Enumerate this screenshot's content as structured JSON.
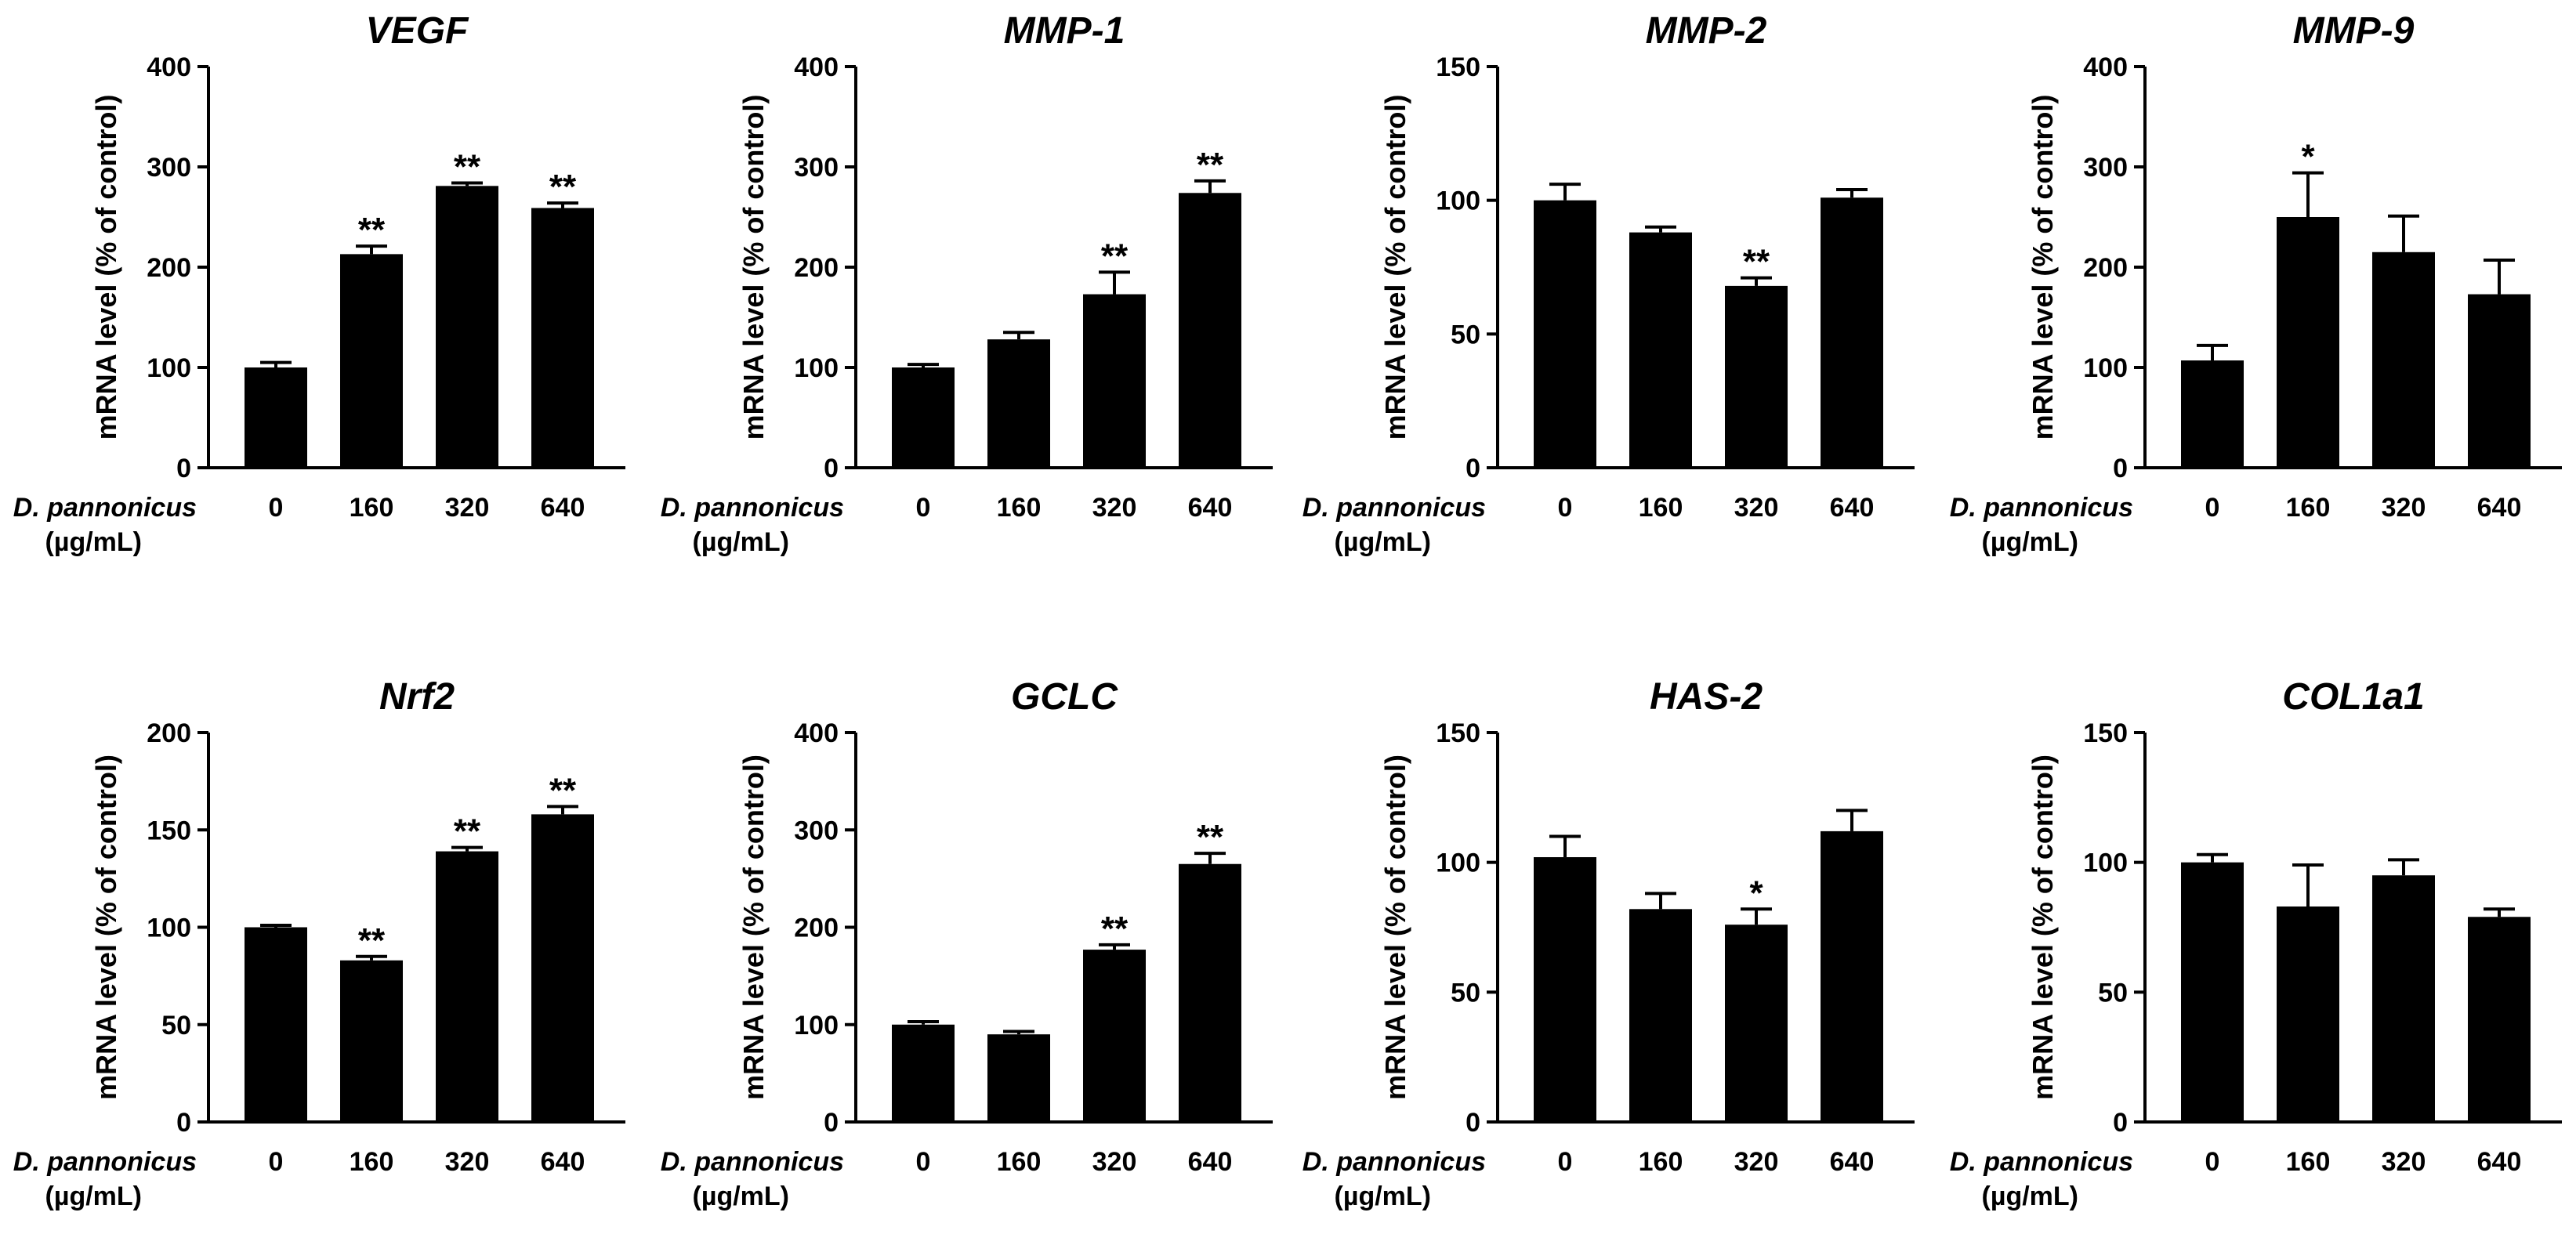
{
  "chart_data": [
    {
      "type": "bar",
      "title": "VEGF",
      "ylabel": "mRNA level (% of control)",
      "xlabel_line1": "D. pannonicus",
      "xlabel_line2": "(µg/mL)",
      "categories": [
        "0",
        "160",
        "320",
        "640"
      ],
      "values": [
        100,
        213,
        281,
        259
      ],
      "errors": [
        5,
        8,
        3,
        5
      ],
      "significance": [
        "",
        "**",
        "**",
        "**"
      ],
      "ylim": [
        0,
        400
      ],
      "yticks": [
        "0",
        "100",
        "200",
        "300",
        "400"
      ]
    },
    {
      "type": "bar",
      "title": "MMP-1",
      "ylabel": "mRNA level (% of control)",
      "xlabel_line1": "D. pannonicus",
      "xlabel_line2": "(µg/mL)",
      "categories": [
        "0",
        "160",
        "320",
        "640"
      ],
      "values": [
        100,
        128,
        173,
        274
      ],
      "errors": [
        3,
        7,
        22,
        12
      ],
      "significance": [
        "",
        "",
        "**",
        "**"
      ],
      "ylim": [
        0,
        400
      ],
      "yticks": [
        "0",
        "100",
        "200",
        "300",
        "400"
      ]
    },
    {
      "type": "bar",
      "title": "MMP-2",
      "ylabel": "mRNA level (% of control)",
      "xlabel_line1": "D. pannonicus",
      "xlabel_line2": "(µg/mL)",
      "categories": [
        "0",
        "160",
        "320",
        "640"
      ],
      "values": [
        100,
        88,
        68,
        101
      ],
      "errors": [
        6,
        2,
        3,
        3
      ],
      "significance": [
        "",
        "",
        "**",
        ""
      ],
      "ylim": [
        0,
        150
      ],
      "yticks": [
        "0",
        "50",
        "100",
        "150"
      ]
    },
    {
      "type": "bar",
      "title": "MMP-9",
      "ylabel": "mRNA level (% of control)",
      "xlabel_line1": "D. pannonicus",
      "xlabel_line2": "(µg/mL)",
      "categories": [
        "0",
        "160",
        "320",
        "640"
      ],
      "values": [
        107,
        250,
        215,
        173
      ],
      "errors": [
        15,
        44,
        36,
        34
      ],
      "significance": [
        "",
        "*",
        "",
        ""
      ],
      "ylim": [
        0,
        400
      ],
      "yticks": [
        "0",
        "100",
        "200",
        "300",
        "400"
      ]
    },
    {
      "type": "bar",
      "title": "Nrf2",
      "ylabel": "mRNA level (% of control)",
      "xlabel_line1": "D. pannonicus",
      "xlabel_line2": "(µg/mL)",
      "categories": [
        "0",
        "160",
        "320",
        "640"
      ],
      "values": [
        100,
        83,
        139,
        158
      ],
      "errors": [
        1,
        2,
        2,
        4
      ],
      "significance": [
        "",
        "**",
        "**",
        "**"
      ],
      "ylim": [
        0,
        200
      ],
      "yticks": [
        "0",
        "50",
        "100",
        "150",
        "200"
      ]
    },
    {
      "type": "bar",
      "title": "GCLC",
      "ylabel": "mRNA level (% of control)",
      "xlabel_line1": "D. pannonicus",
      "xlabel_line2": "(µg/mL)",
      "categories": [
        "0",
        "160",
        "320",
        "640"
      ],
      "values": [
        100,
        90,
        177,
        265
      ],
      "errors": [
        3,
        3,
        5,
        11
      ],
      "significance": [
        "",
        "",
        "**",
        "**"
      ],
      "ylim": [
        0,
        400
      ],
      "yticks": [
        "0",
        "100",
        "200",
        "300",
        "400"
      ]
    },
    {
      "type": "bar",
      "title": "HAS-2",
      "ylabel": "mRNA level (% of control)",
      "xlabel_line1": "D. pannonicus",
      "xlabel_line2": "(µg/mL)",
      "categories": [
        "0",
        "160",
        "320",
        "640"
      ],
      "values": [
        102,
        82,
        76,
        112
      ],
      "errors": [
        8,
        6,
        6,
        8
      ],
      "significance": [
        "",
        "",
        "*",
        ""
      ],
      "ylim": [
        0,
        150
      ],
      "yticks": [
        "0",
        "50",
        "100",
        "150"
      ]
    },
    {
      "type": "bar",
      "title": "COL1a1",
      "ylabel": "mRNA level (% of control)",
      "xlabel_line1": "D. pannonicus",
      "xlabel_line2": "(µg/mL)",
      "categories": [
        "0",
        "160",
        "320",
        "640"
      ],
      "values": [
        100,
        83,
        95,
        79
      ],
      "errors": [
        3,
        16,
        6,
        3
      ],
      "significance": [
        "",
        "",
        "",
        ""
      ],
      "ylim": [
        0,
        150
      ],
      "yticks": [
        "0",
        "50",
        "100",
        "150"
      ]
    }
  ],
  "colors": {
    "bar": "#000000",
    "axis": "#000000",
    "background": "#ffffff"
  }
}
